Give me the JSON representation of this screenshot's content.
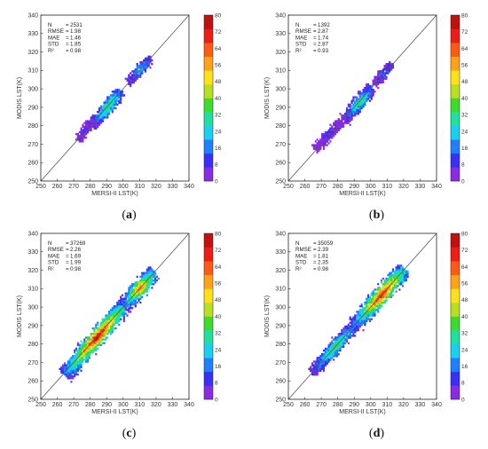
{
  "colors": {
    "colormap": [
      "#8a2be2",
      "#3a2ff5",
      "#1f7fff",
      "#18d0f0",
      "#20e0a0",
      "#3cdc2c",
      "#b8e020",
      "#ffe11a",
      "#ffa21a",
      "#ff5a14",
      "#ee1c14",
      "#c01010"
    ],
    "identity_line": "#555555",
    "axis": "#222222"
  },
  "chart_data": [
    {
      "type": "heatmap",
      "panel": "a",
      "caption": {
        "open": "(",
        "label": "a",
        "close": ")"
      },
      "xlabel": "MERSI-II LST(K)",
      "ylabel": "MODIS LST(K)",
      "xlim": [
        250,
        340
      ],
      "ylim": [
        250,
        340
      ],
      "x_ticks": [
        "250",
        "260",
        "270",
        "280",
        "290",
        "300",
        "310",
        "320",
        "330",
        "340"
      ],
      "y_ticks": [
        "250",
        "260",
        "270",
        "280",
        "290",
        "300",
        "310",
        "320",
        "330",
        "340"
      ],
      "identity_line": true,
      "stats": [
        {
          "name": "N",
          "value": "2531"
        },
        {
          "name": "RMSE",
          "value": "1.98"
        },
        {
          "name": "MAE",
          "value": "1.46"
        },
        {
          "name": "STD",
          "value": "1.85"
        },
        {
          "name": "R²",
          "value": "0.98"
        }
      ],
      "colorbar": {
        "range": [
          0,
          80
        ],
        "ticks": [
          "80",
          "72",
          "64",
          "56",
          "48",
          "40",
          "32",
          "24",
          "16",
          "8",
          "0"
        ]
      },
      "density_clusters": [
        {
          "x": [
            272,
            280
          ],
          "y": [
            272,
            281
          ],
          "peak": 10
        },
        {
          "x": [
            281,
            298
          ],
          "y": [
            280,
            298
          ],
          "peak": 40
        },
        {
          "x": [
            303,
            316
          ],
          "y": [
            303,
            316
          ],
          "peak": 25
        }
      ]
    },
    {
      "type": "heatmap",
      "panel": "b",
      "caption": {
        "open": "(",
        "label": "b",
        "close": ")"
      },
      "xlabel": "MERSI-II LST(K)",
      "ylabel": "MODIS LST(K)",
      "xlim": [
        250,
        340
      ],
      "ylim": [
        250,
        340
      ],
      "x_ticks": [
        "250",
        "260",
        "270",
        "280",
        "290",
        "300",
        "310",
        "320",
        "330",
        "340"
      ],
      "y_ticks": [
        "250",
        "260",
        "270",
        "280",
        "290",
        "300",
        "310",
        "320",
        "330",
        "340"
      ],
      "identity_line": true,
      "stats": [
        {
          "name": "N",
          "value": "1392"
        },
        {
          "name": "RMSE",
          "value": "2.87"
        },
        {
          "name": "MAE",
          "value": "1.74"
        },
        {
          "name": "STD",
          "value": "2.87"
        },
        {
          "name": "R²",
          "value": "0.93"
        }
      ],
      "colorbar": {
        "range": [
          0,
          80
        ],
        "ticks": [
          "80",
          "72",
          "64",
          "56",
          "48",
          "40",
          "32",
          "24",
          "16",
          "8",
          "0"
        ]
      },
      "density_clusters": [
        {
          "x": [
            266,
            282
          ],
          "y": [
            267,
            282
          ],
          "peak": 8
        },
        {
          "x": [
            284,
            300
          ],
          "y": [
            283,
            300
          ],
          "peak": 35
        },
        {
          "x": [
            302,
            312
          ],
          "y": [
            302,
            313
          ],
          "peak": 18
        }
      ]
    },
    {
      "type": "heatmap",
      "panel": "c",
      "caption": {
        "open": "(",
        "label": "c",
        "close": ")"
      },
      "xlabel": "MERSI-II LST(K)",
      "ylabel": "MODIS LST(K)",
      "xlim": [
        250,
        340
      ],
      "ylim": [
        250,
        340
      ],
      "x_ticks": [
        "250",
        "260",
        "270",
        "280",
        "290",
        "300",
        "310",
        "320",
        "330",
        "340"
      ],
      "y_ticks": [
        "250",
        "260",
        "270",
        "280",
        "290",
        "300",
        "310",
        "320",
        "330",
        "340"
      ],
      "identity_line": true,
      "stats": [
        {
          "name": "N",
          "value": "37269"
        },
        {
          "name": "RMSE",
          "value": "2.26"
        },
        {
          "name": "MAE",
          "value": "1.69"
        },
        {
          "name": "STD",
          "value": "1.99"
        },
        {
          "name": "R²",
          "value": "0.98"
        }
      ],
      "colorbar": {
        "range": [
          0,
          80
        ],
        "ticks": [
          "80",
          "72",
          "64",
          "56",
          "48",
          "40",
          "32",
          "24",
          "16",
          "8",
          "0"
        ]
      },
      "density_clusters": [
        {
          "x": [
            264,
            300
          ],
          "y": [
            263,
            300
          ],
          "peak": 80
        },
        {
          "x": [
            300,
            318
          ],
          "y": [
            300,
            318
          ],
          "peak": 65
        }
      ]
    },
    {
      "type": "heatmap",
      "panel": "d",
      "caption": {
        "open": "(",
        "label": "d",
        "close": ")"
      },
      "xlabel": "MERSI-II LST(K)",
      "ylabel": "MODIS LST(K)",
      "xlim": [
        250,
        340
      ],
      "ylim": [
        250,
        340
      ],
      "x_ticks": [
        "250",
        "260",
        "270",
        "280",
        "290",
        "300",
        "310",
        "320",
        "330",
        "340"
      ],
      "y_ticks": [
        "250",
        "260",
        "270",
        "280",
        "290",
        "300",
        "310",
        "320",
        "330",
        "340"
      ],
      "identity_line": true,
      "stats": [
        {
          "name": "N",
          "value": "35059"
        },
        {
          "name": "RMSE",
          "value": "2.39"
        },
        {
          "name": "MAE",
          "value": "1.81"
        },
        {
          "name": "STD",
          "value": "2.35"
        },
        {
          "name": "R²",
          "value": "0.98"
        }
      ],
      "colorbar": {
        "range": [
          0,
          80
        ],
        "ticks": [
          "80",
          "72",
          "64",
          "56",
          "48",
          "40",
          "32",
          "24",
          "16",
          "8",
          "0"
        ]
      },
      "density_clusters": [
        {
          "x": [
            264,
            290
          ],
          "y": [
            264,
            290
          ],
          "peak": 40
        },
        {
          "x": [
            290,
            320
          ],
          "y": [
            290,
            320
          ],
          "peak": 78
        }
      ]
    }
  ]
}
